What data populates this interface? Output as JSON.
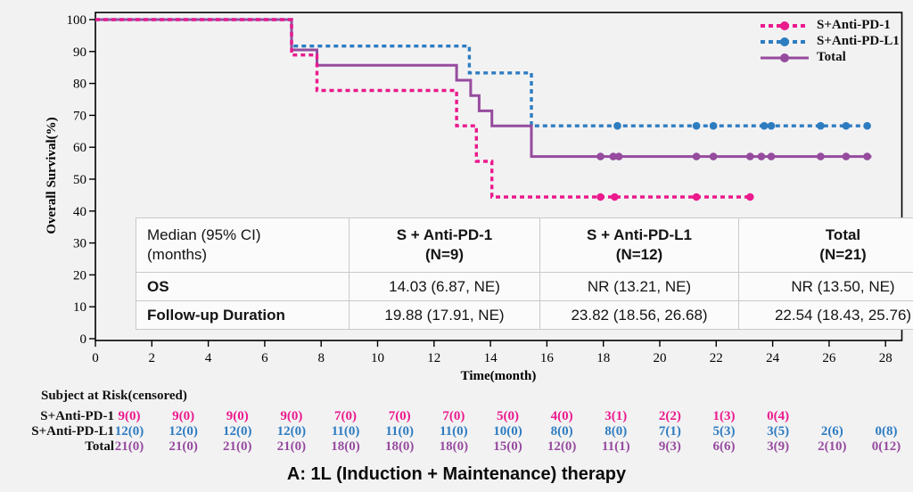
{
  "colors": {
    "pd1": "#EB1A8D",
    "pdl1": "#2E7CC0",
    "total": "#964B9E",
    "axis": "#000000",
    "background": "#f2f2f3",
    "table_bg": "#fbfbfb",
    "table_border": "#c9c9c9"
  },
  "legend": {
    "items": [
      {
        "label": "S+Anti-PD-1",
        "color_key": "pd1",
        "style": "dashed"
      },
      {
        "label": "S+Anti-PD-L1",
        "color_key": "pdl1",
        "style": "dashed"
      },
      {
        "label": "Total",
        "color_key": "total",
        "style": "solid"
      }
    ]
  },
  "chart_data": {
    "type": "line",
    "subtype": "kaplan-meier-step",
    "title": "",
    "xlabel": "Time(month)",
    "ylabel": "Overall Survival(%)",
    "xlim": [
      0,
      28
    ],
    "ylim": [
      0,
      100
    ],
    "x_ticks": [
      0,
      2,
      4,
      6,
      8,
      10,
      12,
      14,
      16,
      18,
      20,
      22,
      24,
      26,
      28
    ],
    "y_ticks": [
      0,
      10,
      20,
      30,
      40,
      50,
      60,
      70,
      80,
      90,
      100
    ],
    "grid": false,
    "legend_position": "top-right",
    "series": [
      {
        "name": "S+Anti-PD-L1",
        "color_key": "pdl1",
        "style": "dashed",
        "steps": [
          [
            0,
            100
          ],
          [
            6.95,
            100
          ],
          [
            6.95,
            91.7
          ],
          [
            13.25,
            91.7
          ],
          [
            13.25,
            83.3
          ],
          [
            15.45,
            83.3
          ],
          [
            15.45,
            66.7
          ],
          [
            27.5,
            66.7
          ]
        ],
        "censor_marks": [
          [
            18.5,
            66.7
          ],
          [
            21.3,
            66.7
          ],
          [
            21.9,
            66.7
          ],
          [
            23.7,
            66.7
          ],
          [
            23.95,
            66.7
          ],
          [
            25.7,
            66.7
          ],
          [
            26.6,
            66.7
          ],
          [
            27.35,
            66.7
          ]
        ]
      },
      {
        "name": "Total",
        "color_key": "total",
        "style": "solid",
        "steps": [
          [
            0,
            100
          ],
          [
            6.95,
            100
          ],
          [
            6.95,
            90.5
          ],
          [
            7.85,
            90.5
          ],
          [
            7.85,
            85.7
          ],
          [
            12.8,
            85.7
          ],
          [
            12.8,
            81.0
          ],
          [
            13.3,
            81.0
          ],
          [
            13.3,
            76.2
          ],
          [
            13.6,
            76.2
          ],
          [
            13.6,
            71.4
          ],
          [
            14.05,
            71.4
          ],
          [
            14.05,
            66.7
          ],
          [
            15.45,
            66.7
          ],
          [
            15.45,
            57.1
          ],
          [
            27.5,
            57.1
          ]
        ],
        "censor_marks": [
          [
            17.9,
            57.1
          ],
          [
            18.35,
            57.1
          ],
          [
            18.55,
            57.1
          ],
          [
            21.3,
            57.1
          ],
          [
            21.9,
            57.1
          ],
          [
            23.2,
            57.1
          ],
          [
            23.6,
            57.1
          ],
          [
            23.95,
            57.1
          ],
          [
            25.7,
            57.1
          ],
          [
            26.6,
            57.1
          ],
          [
            27.35,
            57.1
          ]
        ]
      },
      {
        "name": "S+Anti-PD-1",
        "color_key": "pd1",
        "style": "dashed",
        "steps": [
          [
            0,
            100
          ],
          [
            6.95,
            100
          ],
          [
            6.95,
            88.9
          ],
          [
            7.85,
            88.9
          ],
          [
            7.85,
            77.8
          ],
          [
            12.8,
            77.8
          ],
          [
            12.8,
            66.7
          ],
          [
            13.5,
            66.7
          ],
          [
            13.5,
            55.6
          ],
          [
            14.05,
            55.6
          ],
          [
            14.05,
            44.4
          ],
          [
            23.3,
            44.4
          ]
        ],
        "censor_marks": [
          [
            17.9,
            44.4
          ],
          [
            18.4,
            44.4
          ],
          [
            21.3,
            44.4
          ],
          [
            23.2,
            44.4
          ]
        ]
      }
    ]
  },
  "stats_table": {
    "header": {
      "col0": "Median (95% CI)\n(months)",
      "cols": [
        "S + Anti-PD-1\n(N=9)",
        "S + Anti-PD-L1\n(N=12)",
        "Total\n(N=21)"
      ]
    },
    "rows": [
      {
        "label": "OS",
        "values": [
          "14.03 (6.87, NE)",
          "NR (13.21, NE)",
          "NR (13.50, NE)"
        ]
      },
      {
        "label": "Follow-up Duration",
        "values": [
          "19.88 (17.91, NE)",
          "23.82 (18.56, 26.68)",
          "22.54 (18.43, 25.76)"
        ]
      }
    ]
  },
  "risk_table": {
    "title": "Subject at Risk(censored)",
    "rows": [
      {
        "label": "S+Anti-PD-1",
        "color_key": "pd1",
        "values": [
          "9(0)",
          "9(0)",
          "9(0)",
          "9(0)",
          "7(0)",
          "7(0)",
          "7(0)",
          "5(0)",
          "4(0)",
          "3(1)",
          "2(2)",
          "1(3)",
          "0(4)"
        ]
      },
      {
        "label": "S+Anti-PD-L1",
        "color_key": "pdl1",
        "values": [
          "12(0)",
          "12(0)",
          "12(0)",
          "12(0)",
          "11(0)",
          "11(0)",
          "11(0)",
          "10(0)",
          "8(0)",
          "8(0)",
          "7(1)",
          "5(3)",
          "3(5)",
          "2(6)",
          "0(8)"
        ]
      },
      {
        "label": "Total",
        "color_key": "total",
        "values": [
          "21(0)",
          "21(0)",
          "21(0)",
          "21(0)",
          "18(0)",
          "18(0)",
          "18(0)",
          "15(0)",
          "12(0)",
          "11(1)",
          "9(3)",
          "6(6)",
          "3(9)",
          "2(10)",
          "0(12)"
        ]
      }
    ]
  },
  "caption": "A: 1L (Induction + Maintenance) therapy"
}
